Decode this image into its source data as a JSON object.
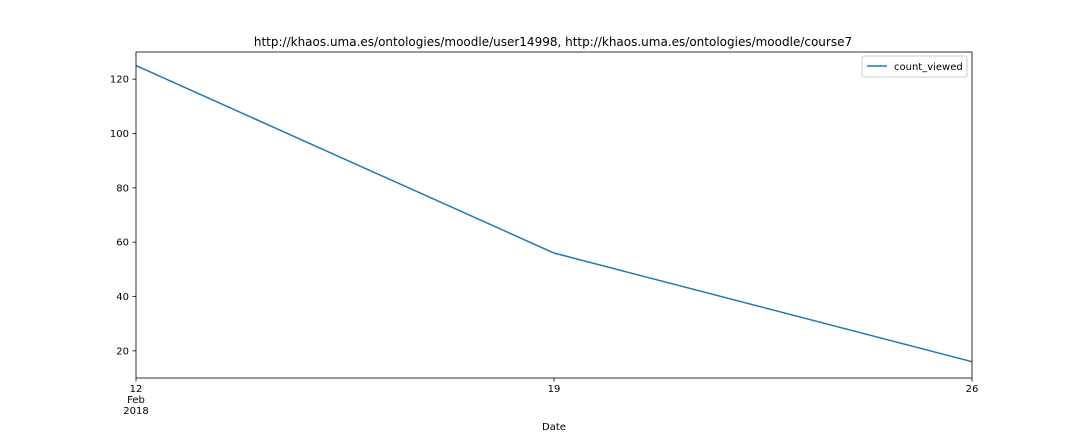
{
  "chart_data": {
    "type": "line",
    "title": "http://khaos.uma.es/ontologies/moodle/user14998, http://khaos.uma.es/ontologies/moodle/course7",
    "xlabel": "Date",
    "ylabel": "",
    "x": [
      "2018-02-12",
      "2018-02-19",
      "2018-02-26"
    ],
    "x_tick_labels": [
      {
        "x": "2018-02-12",
        "lines": [
          "12",
          "Feb",
          "2018"
        ]
      },
      {
        "x": "2018-02-19",
        "lines": [
          "19"
        ]
      },
      {
        "x": "2018-02-26",
        "lines": [
          "26"
        ]
      }
    ],
    "series": [
      {
        "name": "count_viewed",
        "values": [
          125,
          56,
          16
        ],
        "color": "#1f77b4"
      }
    ],
    "yticks": [
      20,
      40,
      60,
      80,
      100,
      120
    ],
    "ylim": [
      10,
      130
    ],
    "xlim": [
      "2018-02-12",
      "2018-02-26"
    ],
    "grid": false,
    "legend_position": "top-right"
  }
}
